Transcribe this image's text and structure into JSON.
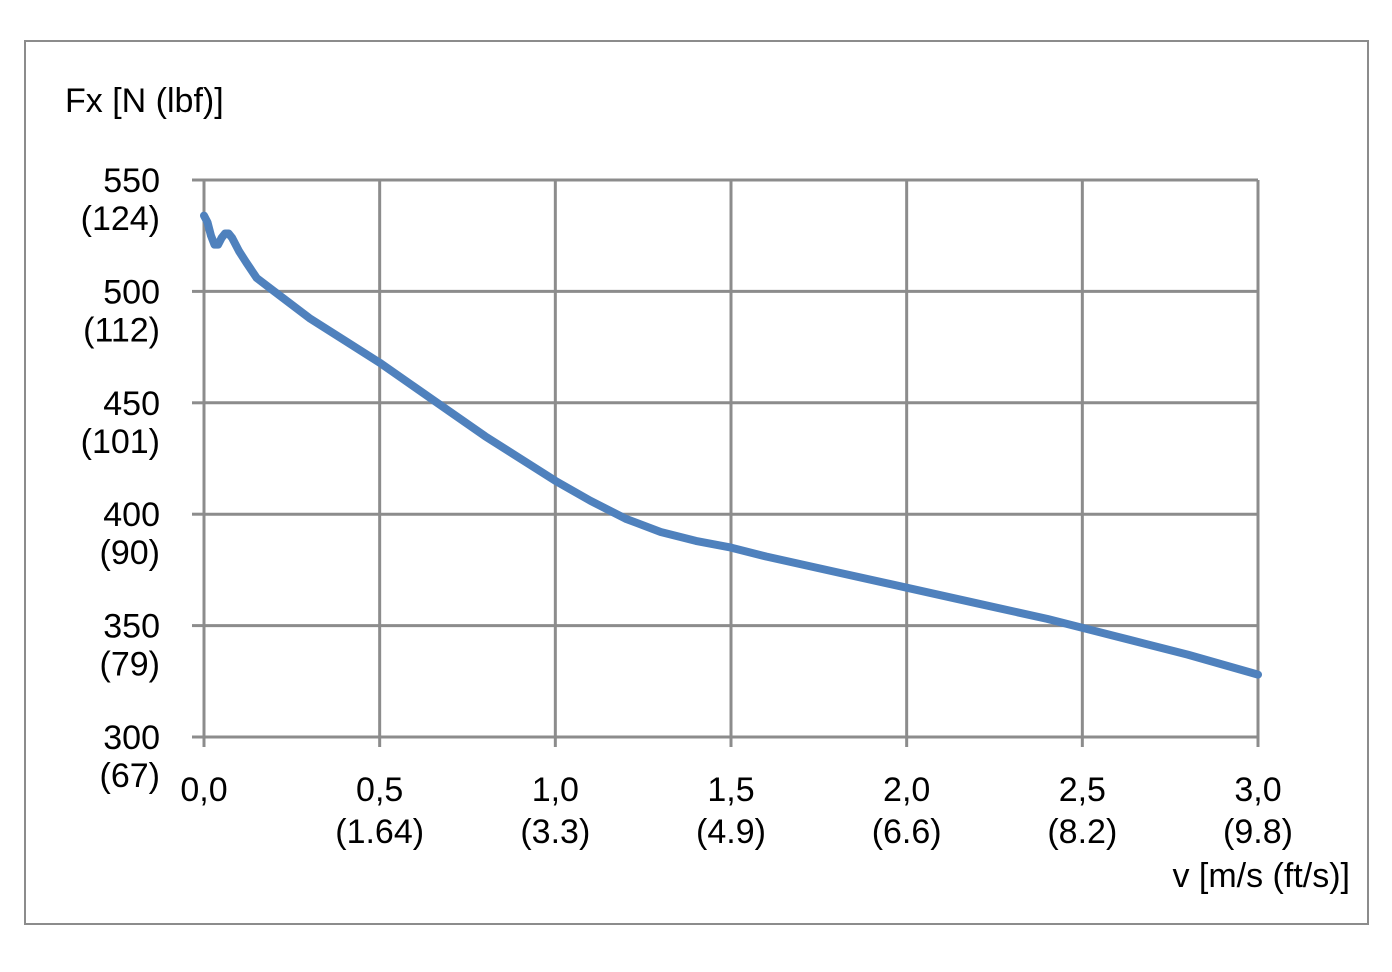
{
  "chart_data": {
    "type": "line",
    "title": "",
    "xlabel": "v [m/s (ft/s)]",
    "ylabel": "Fx [N (lbf)]",
    "xlim": [
      0,
      3.0
    ],
    "ylim": [
      300,
      550
    ],
    "grid": true,
    "legend": "none",
    "x_ticks": [
      {
        "value": 0.0,
        "label": "0,0",
        "sub": ""
      },
      {
        "value": 0.5,
        "label": "0,5",
        "sub": "(1.64)"
      },
      {
        "value": 1.0,
        "label": "1,0",
        "sub": "(3.3)"
      },
      {
        "value": 1.5,
        "label": "1,5",
        "sub": "(4.9)"
      },
      {
        "value": 2.0,
        "label": "2,0",
        "sub": "(6.6)"
      },
      {
        "value": 2.5,
        "label": "2,5",
        "sub": "(8.2)"
      },
      {
        "value": 3.0,
        "label": "3,0",
        "sub": "(9.8)"
      }
    ],
    "y_ticks": [
      {
        "value": 550,
        "label": "550",
        "sub": "(124)"
      },
      {
        "value": 500,
        "label": "500",
        "sub": "(112)"
      },
      {
        "value": 450,
        "label": "450",
        "sub": "(101)"
      },
      {
        "value": 400,
        "label": "400",
        "sub": "(90)"
      },
      {
        "value": 350,
        "label": "350",
        "sub": "(79)"
      },
      {
        "value": 300,
        "label": "300",
        "sub": "(67)"
      }
    ],
    "series": [
      {
        "color": "#4f81bd",
        "x": [
          0.0,
          0.01,
          0.02,
          0.03,
          0.04,
          0.05,
          0.06,
          0.07,
          0.08,
          0.1,
          0.12,
          0.15,
          0.2,
          0.3,
          0.4,
          0.5,
          0.6,
          0.7,
          0.8,
          0.9,
          1.0,
          1.1,
          1.2,
          1.3,
          1.4,
          1.5,
          1.6,
          1.8,
          2.0,
          2.2,
          2.4,
          2.6,
          2.8,
          3.0
        ],
        "y": [
          534,
          531,
          525,
          521,
          521,
          524,
          526,
          526,
          524,
          518,
          513,
          506,
          500,
          488,
          478,
          468,
          457,
          446,
          435,
          425,
          415,
          406,
          398,
          392,
          388,
          385,
          381,
          374,
          367,
          360,
          353,
          345,
          337,
          328
        ]
      }
    ]
  }
}
